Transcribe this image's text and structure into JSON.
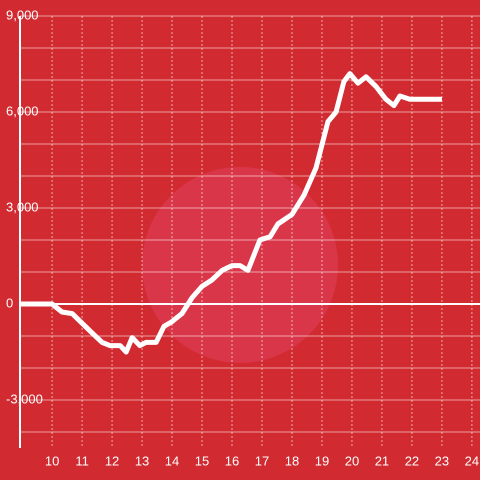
{
  "chart_data": {
    "type": "line",
    "x": [
      8.93,
      10,
      10.33,
      10.67,
      11,
      11.33,
      11.67,
      11.93,
      12.27,
      12.47,
      12.67,
      12.93,
      13.13,
      13.47,
      13.73,
      14,
      14.33,
      14.67,
      15,
      15.33,
      15.67,
      16,
      16.27,
      16.53,
      16.93,
      17.27,
      17.53,
      18,
      18.4,
      18.8,
      19.2,
      19.47,
      19.73,
      19.93,
      20.2,
      20.47,
      20.8,
      21.13,
      21.4,
      21.6,
      21.93,
      23
    ],
    "series": [
      {
        "color": "#ffffff",
        "values": [
          0,
          0,
          -250,
          -300,
          -600,
          -900,
          -1200,
          -1300,
          -1300,
          -1500,
          -1050,
          -1300,
          -1200,
          -1200,
          -700,
          -550,
          -300,
          200,
          550,
          750,
          1050,
          1200,
          1200,
          1050,
          2000,
          2100,
          2500,
          2800,
          3400,
          4250,
          5700,
          6000,
          6950,
          7200,
          6900,
          7100,
          6800,
          6400,
          6200,
          6500,
          6400,
          6400
        ]
      }
    ],
    "xlim": [
      8.93,
      24.27
    ],
    "xticks": [
      10,
      11,
      12,
      13,
      14,
      15,
      16,
      17,
      18,
      19,
      20,
      21,
      22,
      23,
      24
    ],
    "ylim": [
      -4500,
      9000
    ],
    "yticks": [
      {
        "value": -3000,
        "label": "-3,000"
      },
      0,
      {
        "value": 3000,
        "label": "3,000"
      },
      {
        "value": 6000,
        "label": "6,000"
      },
      {
        "value": 9000,
        "label": "9,000"
      }
    ],
    "minor_yticks": [
      -4000,
      -2000,
      -1000,
      1000,
      2000,
      4000,
      5000,
      7000,
      8000
    ],
    "grid": true
  }
}
